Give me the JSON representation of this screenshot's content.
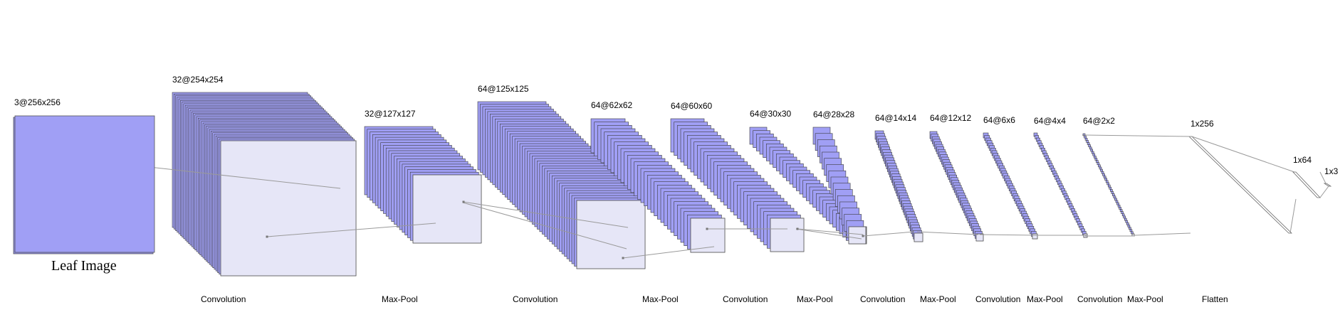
{
  "input": {
    "label": "3@256x256",
    "caption": "Leaf Image",
    "fill": "#a09ff5"
  },
  "layers": [
    {
      "id": "conv1",
      "label": "32@254x254"
    },
    {
      "id": "pool1",
      "label": "32@127x127"
    },
    {
      "id": "conv2",
      "label": "64@125x125"
    },
    {
      "id": "pool2",
      "label": "64@62x62"
    },
    {
      "id": "conv3",
      "label": "64@60x60"
    },
    {
      "id": "pool3",
      "label": "64@30x30"
    },
    {
      "id": "conv4",
      "label": "64@28x28"
    },
    {
      "id": "pool4",
      "label": "64@14x14"
    },
    {
      "id": "conv5",
      "label": "64@12x12"
    },
    {
      "id": "pool5",
      "label": "64@6x6"
    },
    {
      "id": "conv6",
      "label": "64@4x4"
    },
    {
      "id": "pool6",
      "label": "64@2x2"
    }
  ],
  "dense": [
    {
      "id": "flatten",
      "label": "1x256"
    },
    {
      "id": "fc1",
      "label": "1x64"
    },
    {
      "id": "out",
      "label": "1x3"
    }
  ],
  "operations": [
    "Convolution",
    "Max-Pool",
    "Convolution",
    "Max-Pool",
    "Convolution",
    "Max-Pool",
    "Convolution",
    "Max-Pool",
    "Convolution",
    "Max-Pool",
    "Convolution",
    "Max-Pool",
    "Flatten"
  ],
  "colors": {
    "feature_map_fill": "#a09ff5",
    "feature_map_stroke": "#3c3c3c",
    "highlight_fill": "#e6e6f7",
    "connector": "#9a9a9a"
  }
}
